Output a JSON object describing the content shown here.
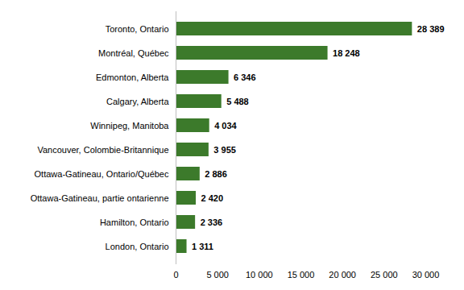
{
  "chart_data": {
    "type": "bar",
    "orientation": "horizontal",
    "categories": [
      "Toronto, Ontario",
      "Montréal, Québec",
      "Edmonton, Alberta",
      "Calgary, Alberta",
      "Winnipeg, Manitoba",
      "Vancouver, Colombie-Britannique",
      "Ottawa-Gatineau, Ontario/Québec",
      "Ottawa-Gatineau, partie ontarienne",
      "Hamilton, Ontario",
      "London, Ontario"
    ],
    "values": [
      28389,
      18248,
      6346,
      5488,
      4034,
      3955,
      2886,
      2420,
      2336,
      1311
    ],
    "value_labels": [
      "28 389",
      "18 248",
      "6 346",
      "5 488",
      "4 034",
      "3 955",
      "2 886",
      "2 420",
      "2 336",
      "1 311"
    ],
    "data_labels": true,
    "color": "#3c7a2b",
    "xlim": [
      0,
      30000
    ],
    "xticks": [
      0,
      {
        "value": 5000,
        "label": "5 000"
      },
      {
        "value": 10000,
        "label": "10 000"
      },
      {
        "value": 15000,
        "label": "15 000"
      },
      {
        "value": 20000,
        "label": "20 000"
      },
      {
        "value": 25000,
        "label": "25 000"
      },
      {
        "value": 30000,
        "label": "30 000"
      }
    ],
    "grid": false
  }
}
